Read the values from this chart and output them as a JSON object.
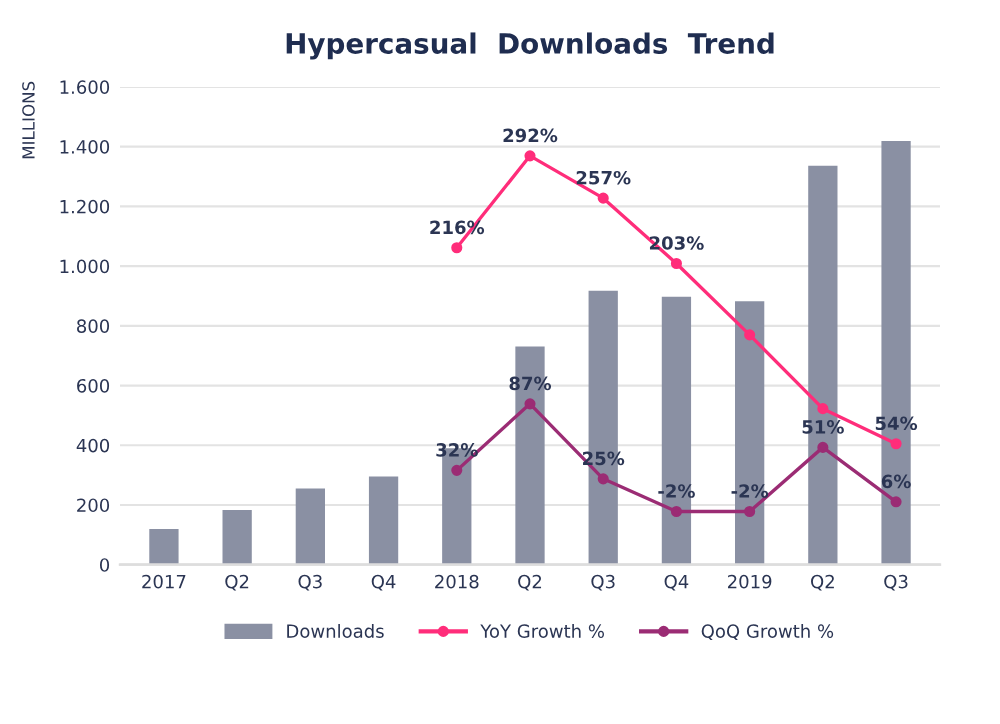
{
  "chart_data": {
    "type": "bar",
    "title": "Hypercasual  Downloads  Trend",
    "ylabel": "MILLIONS",
    "categories": [
      "2017",
      "Q2",
      "Q3",
      "Q4",
      "2018",
      "Q2",
      "Q3",
      "Q4",
      "2019",
      "Q2",
      "Q3"
    ],
    "series": [
      {
        "name": "Downloads",
        "color": "#8a90a3",
        "values": [
          120,
          183,
          255,
          295,
          390,
          731,
          917,
          897,
          882,
          1336,
          1419
        ]
      },
      {
        "name": "YoY Growth %",
        "type": "line",
        "axis": "y2",
        "color": "#ff2d7a",
        "values": [
          null,
          null,
          null,
          null,
          216,
          292,
          257,
          203,
          144,
          83,
          54
        ],
        "value_labels": [
          null,
          null,
          null,
          null,
          "216%",
          "292%",
          "257%",
          "203%",
          null,
          null,
          "54%"
        ]
      },
      {
        "name": "QoQ Growth %",
        "type": "line",
        "axis": "y2",
        "color": "#9b2c74",
        "values": [
          null,
          null,
          null,
          null,
          32,
          87,
          25,
          -2,
          -2,
          51,
          6
        ],
        "value_labels": [
          null,
          null,
          null,
          null,
          "32%",
          "87%",
          "25%",
          "-2%",
          "-2%",
          "51%",
          "6%"
        ]
      }
    ],
    "ylim": [
      0,
      1600
    ],
    "yticks": [
      0,
      200,
      400,
      600,
      800,
      {
        "value": 1000,
        "label": "1.000"
      },
      {
        "value": 1200,
        "label": "1.200"
      },
      {
        "value": 1400,
        "label": "1.400"
      },
      {
        "value": 1600,
        "label": "1.600"
      }
    ],
    "y2lim": [
      -46,
      349
    ],
    "tick_labels": "xy",
    "grid": "y",
    "legend": "bottom",
    "marker": "circle",
    "line_style": "solid"
  }
}
